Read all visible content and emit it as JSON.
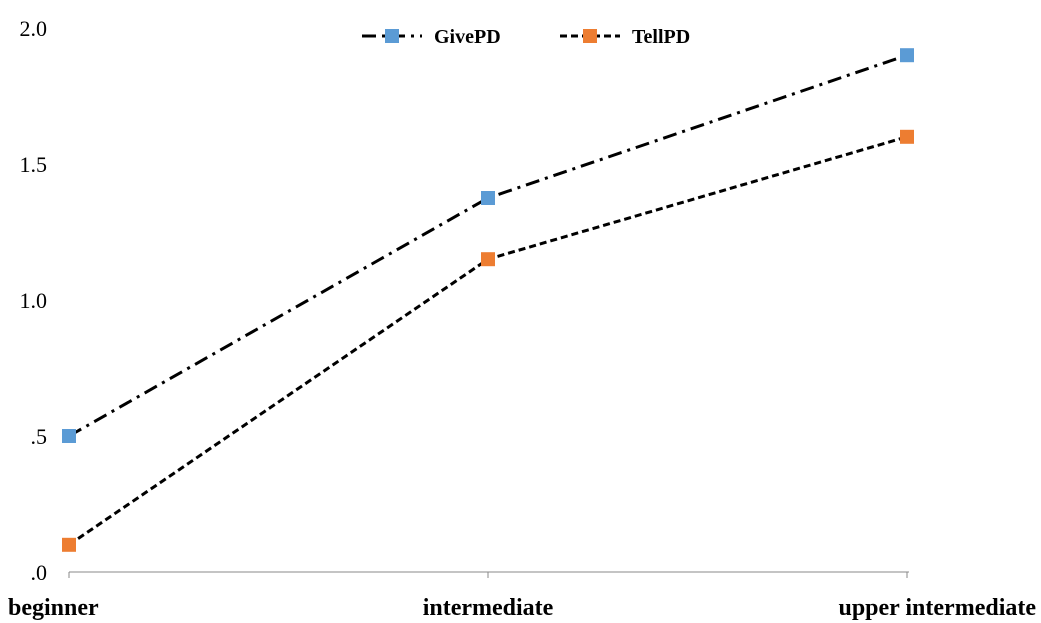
{
  "chart_data": {
    "type": "line",
    "title": "",
    "xlabel": "",
    "ylabel": "",
    "categories": [
      "beginner",
      "intermediate",
      "upper intermediate"
    ],
    "ylim": [
      0,
      2.0
    ],
    "yticks": [
      ".0",
      ".5",
      "1.0",
      "1.5",
      "2.0"
    ],
    "ytick_values": [
      0,
      0.5,
      1.0,
      1.5,
      2.0
    ],
    "grid": false,
    "legend_position": "top-center",
    "series": [
      {
        "name": "GivePD",
        "values": [
          0.5,
          1.375,
          1.9
        ],
        "marker_color": "#5B9BD5",
        "line_color": "#000000",
        "line_style": "dash-dot"
      },
      {
        "name": "TellPD",
        "values": [
          0.1,
          1.15,
          1.6
        ],
        "marker_color": "#ED7D31",
        "line_color": "#000000",
        "line_style": "dashed"
      }
    ]
  }
}
